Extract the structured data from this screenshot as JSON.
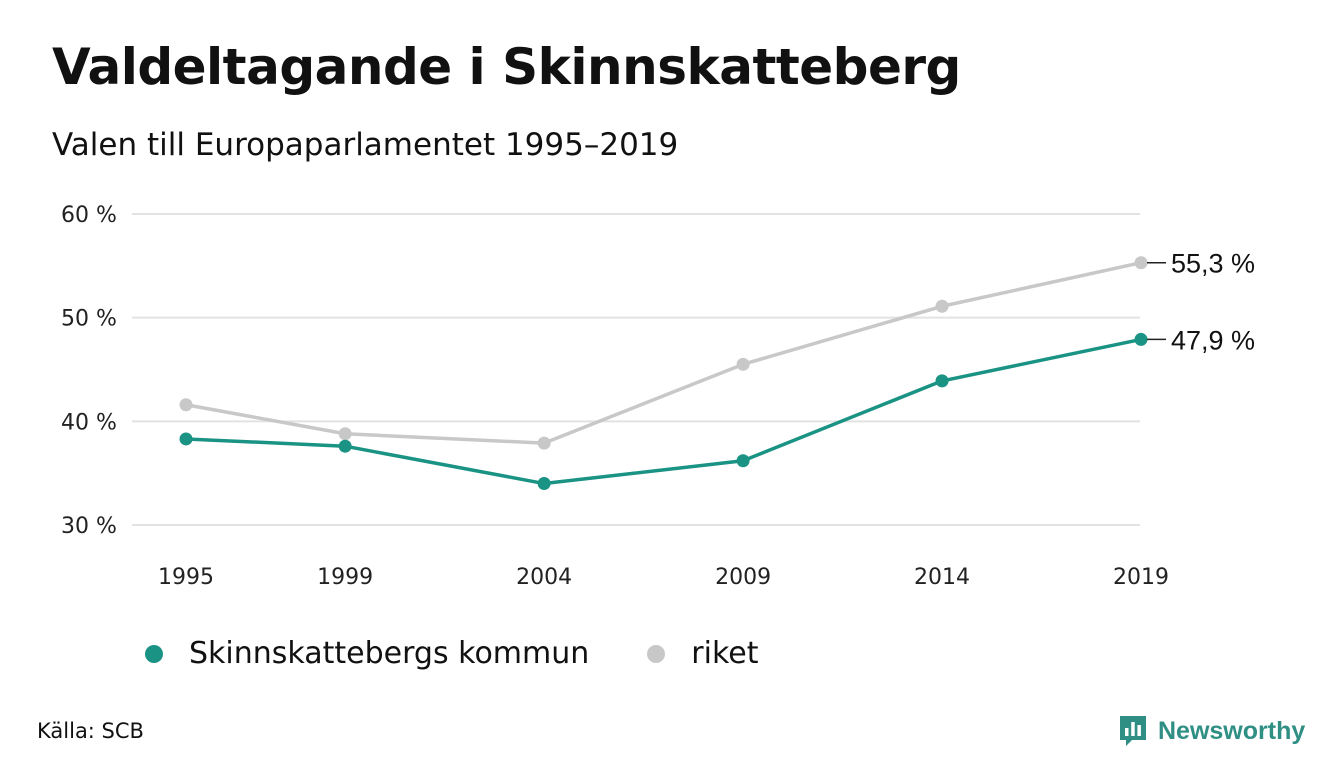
{
  "header": {
    "title": "Valdeltagande i Skinnskatteberg",
    "subtitle": "Valen till Europaparlamentet 1995–2019"
  },
  "chart_data": {
    "type": "line",
    "title": "Valdeltagande i Skinnskatteberg",
    "subtitle": "Valen till Europaparlamentet 1995–2019",
    "xlabel": "",
    "ylabel": "",
    "x": [
      "1995",
      "1999",
      "2004",
      "2009",
      "2014",
      "2019"
    ],
    "x_values": [
      1995,
      1999,
      2004,
      2009,
      2014,
      2019
    ],
    "ylim": [
      30,
      60
    ],
    "yticks": [
      30,
      40,
      50,
      60
    ],
    "ytick_labels": [
      "30 %",
      "40 %",
      "50 %",
      "60 %"
    ],
    "grid": true,
    "legend_position": "bottom",
    "series": [
      {
        "name": "riket",
        "color": "#c8c8c8",
        "values": [
          41.6,
          38.8,
          37.9,
          45.5,
          51.1,
          55.3
        ],
        "end_label": "55,3 %"
      },
      {
        "name": "Skinnskattebergs kommun",
        "color": "#1a9384",
        "values": [
          38.3,
          37.6,
          34.0,
          36.2,
          43.9,
          47.9
        ],
        "end_label": "47,9 %"
      }
    ]
  },
  "legend": {
    "items": [
      {
        "label": "Skinnskattebergs kommun",
        "color": "#1a9384"
      },
      {
        "label": "riket",
        "color": "#c8c8c8"
      }
    ]
  },
  "footer": {
    "source": "Källa: SCB",
    "brand": "Newsworthy",
    "brand_color": "#2f8f84",
    "brand_icon": "bar-chart-speech-bubble-icon"
  }
}
